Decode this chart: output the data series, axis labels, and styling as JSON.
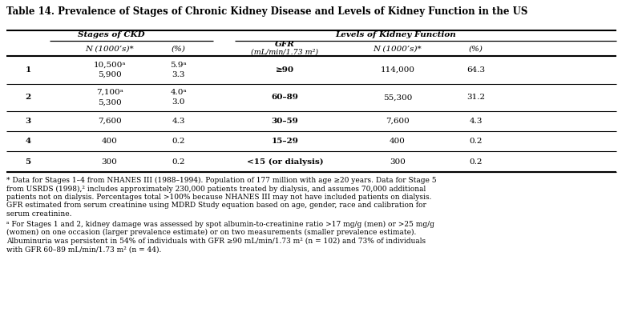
{
  "title": "Table 14. Prevalence of Stages of Chronic Kidney Disease and Levels of Kidney Function in the US",
  "rows": [
    {
      "stage": "1",
      "n_ckd1": "10,500ᵃ",
      "n_ckd2": "5,900",
      "pct_ckd1": "5.9ᵃ",
      "pct_ckd2": "3.3",
      "gfr": "≥90",
      "n_kf": "114,000",
      "pct_kf": "64.3"
    },
    {
      "stage": "2",
      "n_ckd1": "7,100ᵃ",
      "n_ckd2": "5,300",
      "pct_ckd1": "4.0ᵃ",
      "pct_ckd2": "3.0",
      "gfr": "60–89",
      "n_kf": "55,300",
      "pct_kf": "31.2"
    },
    {
      "stage": "3",
      "n_ckd1": "7,600",
      "n_ckd2": "",
      "pct_ckd1": "4.3",
      "pct_ckd2": "",
      "gfr": "30–59",
      "n_kf": "7,600",
      "pct_kf": "4.3"
    },
    {
      "stage": "4",
      "n_ckd1": "400",
      "n_ckd2": "",
      "pct_ckd1": "0.2",
      "pct_ckd2": "",
      "gfr": "15–29",
      "n_kf": "400",
      "pct_kf": "0.2"
    },
    {
      "stage": "5",
      "n_ckd1": "300",
      "n_ckd2": "",
      "pct_ckd1": "0.2",
      "pct_ckd2": "",
      "gfr": "<15 (or dialysis)",
      "n_kf": "300",
      "pct_kf": "0.2"
    }
  ],
  "footnote_star": "* Data for Stages 1–4 from NHANES III (1988–1994). Population of 177 million with age ≥20 years. Data for Stage 5\nfrom USRDS (1998),² includes approximately 230,000 patients treated by dialysis, and assumes 70,000 additional\npatients not on dialysis. Percentages total >100% because NHANES III may not have included patients on dialysis.\nGFR estimated from serum creatinine using MDRD Study equation based on age, gender, race and calibration for\nserum creatinine.",
  "footnote_a": "ᵃ For Stages 1 and 2, kidney damage was assessed by spot albumin-to-creatinine ratio >17 mg/g (men) or >25 mg/g\n(women) on one occasion (larger prevalence estimate) or on two measurements (smaller prevalence estimate).\nAlbuminuria was persistent in 54% of individuals with GFR ≥90 mL/min/1.73 m² (n = 102) and 73% of individuals\nwith GFR 60–89 mL/min/1.73 m² (n = 44).",
  "col_x": {
    "stage": 0.045,
    "n_ckd": 0.175,
    "pct_ckd": 0.285,
    "gfr": 0.455,
    "n_kf": 0.635,
    "pct_kf": 0.76
  },
  "background": "#ffffff",
  "text_color": "#000000"
}
